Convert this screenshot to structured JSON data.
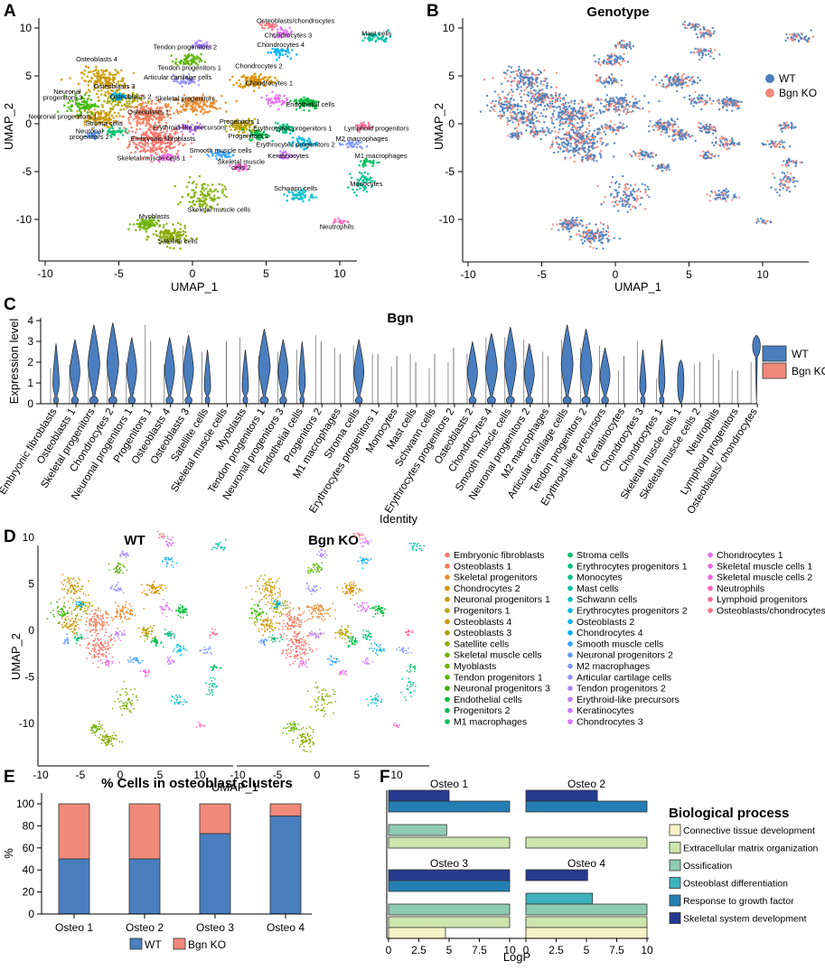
{
  "panel_letters": {
    "a": "A",
    "b": "B",
    "c": "C",
    "d": "D",
    "e": "E",
    "f": "F"
  },
  "colors": {
    "wt": "#4a7ebf",
    "ko": "#f0897a",
    "bar_outline": "#333333"
  },
  "umap": {
    "xlabel": "UMAP_1",
    "ylabel": "UMAP_2",
    "xticks": [
      "-10",
      "-5",
      "0",
      "5",
      "10"
    ],
    "yticks": [
      "10",
      "5",
      "0",
      "-5",
      "-10"
    ],
    "clusters": [
      {
        "label": "Embryonic fibroblasts",
        "color": "#f8766d",
        "x": -2.5,
        "y": -1.8,
        "sx": 1.6,
        "sy": 1.5,
        "n": 260
      },
      {
        "label": "Osteoblasts 1",
        "color": "#f27c5a",
        "x": -3,
        "y": 0.8,
        "sx": 1.5,
        "sy": 1.2,
        "n": 200
      },
      {
        "label": "Skeletal progenitors",
        "color": "#e78a2f",
        "x": 0.2,
        "y": 2,
        "sx": 1.6,
        "sy": 0.8,
        "n": 150
      },
      {
        "label": "Chondrocytes 2",
        "color": "#d89000",
        "x": 4.3,
        "y": 4.5,
        "sx": 1.1,
        "sy": 0.7,
        "n": 120
      },
      {
        "label": "Neuronal progenitors 1",
        "color": "#c99700",
        "x": -6.5,
        "y": 0.6,
        "sx": 1.2,
        "sy": 0.9,
        "n": 120
      },
      {
        "label": "Progenitors 1",
        "color": "#b79f00",
        "x": 3.4,
        "y": -0.3,
        "sx": 0.9,
        "sy": 0.7,
        "n": 90
      },
      {
        "label": "Osteoblasts 4",
        "color": "#c99700",
        "x": -6,
        "y": 4.5,
        "sx": 1.4,
        "sy": 1.2,
        "n": 160
      },
      {
        "label": "Osteoblasts 3",
        "color": "#a3a500",
        "x": -4.8,
        "y": 2.5,
        "sx": 1.2,
        "sy": 0.8,
        "n": 110
      },
      {
        "label": "Satellite cells",
        "color": "#8aa900",
        "x": -1.5,
        "y": -11.8,
        "sx": 1.1,
        "sy": 0.9,
        "n": 130
      },
      {
        "label": "Skeletal muscle cells",
        "color": "#7cae00",
        "x": 0.8,
        "y": -7.5,
        "sx": 1.2,
        "sy": 1.4,
        "n": 110
      },
      {
        "label": "Myoblasts",
        "color": "#6bb100",
        "x": -3.2,
        "y": -10.5,
        "sx": 0.8,
        "sy": 0.6,
        "n": 80
      },
      {
        "label": "Tendon progenitors 1",
        "color": "#5bb300",
        "x": -0.3,
        "y": 6.6,
        "sx": 0.8,
        "sy": 0.6,
        "n": 70
      },
      {
        "label": "Neuronal progenitors 3",
        "color": "#39b600",
        "x": -7.5,
        "y": 2,
        "sx": 0.9,
        "sy": 0.9,
        "n": 80
      },
      {
        "label": "Endothelial cells",
        "color": "#00ba38",
        "x": 7.8,
        "y": 2.2,
        "sx": 0.8,
        "sy": 0.6,
        "n": 80
      },
      {
        "label": "Progenitors 2",
        "color": "#00bb4e",
        "x": 4.5,
        "y": -1.2,
        "sx": 0.6,
        "sy": 0.5,
        "n": 60
      },
      {
        "label": "M1 macrophages",
        "color": "#00bd5f",
        "x": 12,
        "y": -4,
        "sx": 0.7,
        "sy": 0.4,
        "n": 30
      },
      {
        "label": "Stroma cells",
        "color": "#00be6c",
        "x": -5.3,
        "y": -0.8,
        "sx": 0.6,
        "sy": 0.4,
        "n": 40
      },
      {
        "label": "Erythrocytes progenitors 1",
        "color": "#00bf7d",
        "x": 6.2,
        "y": -0.5,
        "sx": 0.7,
        "sy": 0.5,
        "n": 50
      },
      {
        "label": "Monocytes",
        "color": "#00c08b",
        "x": 11.5,
        "y": -6,
        "sx": 0.6,
        "sy": 0.9,
        "n": 50
      },
      {
        "label": "Mast cells",
        "color": "#00c1a3",
        "x": 12.5,
        "y": 9,
        "sx": 0.9,
        "sy": 0.5,
        "n": 45
      },
      {
        "label": "Schwann cells",
        "color": "#00bfc4",
        "x": 7.3,
        "y": -7.5,
        "sx": 0.8,
        "sy": 0.6,
        "n": 50
      },
      {
        "label": "Erythrocytes progenitors 2",
        "color": "#00b9e3",
        "x": 7.5,
        "y": -2,
        "sx": 0.8,
        "sy": 0.5,
        "n": 50
      },
      {
        "label": "Osteoblasts 2",
        "color": "#00b4f0",
        "x": -5,
        "y": 2.8,
        "sx": 0.5,
        "sy": 0.4,
        "n": 35
      },
      {
        "label": "Chondrocytes 4",
        "color": "#00adfa",
        "x": 5.8,
        "y": 7.5,
        "sx": 0.7,
        "sy": 0.5,
        "n": 40
      },
      {
        "label": "Smooth muscle cells",
        "color": "#35a2ff",
        "x": 2,
        "y": -3.2,
        "sx": 0.8,
        "sy": 0.4,
        "n": 45
      },
      {
        "label": "Neuronal progenitors 2",
        "color": "#619cff",
        "x": -6.8,
        "y": -1.2,
        "sx": 0.5,
        "sy": 0.4,
        "n": 35
      },
      {
        "label": "M2 macrophages",
        "color": "#7c96ff",
        "x": 10.8,
        "y": -2.2,
        "sx": 0.8,
        "sy": 0.4,
        "n": 35
      },
      {
        "label": "Articular cartilage cells",
        "color": "#9590ff",
        "x": -0.5,
        "y": 4.5,
        "sx": 0.7,
        "sy": 0.5,
        "n": 45
      },
      {
        "label": "Tendon progenitors 2",
        "color": "#ab82ff",
        "x": 0.5,
        "y": 8.2,
        "sx": 0.6,
        "sy": 0.4,
        "n": 35
      },
      {
        "label": "Erythroid-like precursors",
        "color": "#bc79fd",
        "x": 0,
        "y": -0.4,
        "sx": 0.9,
        "sy": 0.4,
        "n": 45
      },
      {
        "label": "Keratinocytes",
        "color": "#cf78ff",
        "x": 6.3,
        "y": -3.3,
        "sx": 0.5,
        "sy": 0.4,
        "n": 30
      },
      {
        "label": "Chondrocytes 3",
        "color": "#dd71fa",
        "x": 6.2,
        "y": 9.5,
        "sx": 0.7,
        "sy": 0.5,
        "n": 35
      },
      {
        "label": "Chondrocytes 1",
        "color": "#e76bf3",
        "x": 5.6,
        "y": 2.5,
        "sx": 0.7,
        "sy": 0.6,
        "n": 45
      },
      {
        "label": "Skeletal muscle cells 1",
        "color": "#f066ea",
        "x": -1.8,
        "y": -3.5,
        "sx": 0.6,
        "sy": 0.4,
        "n": 35
      },
      {
        "label": "Skeletal muscle cells 2",
        "color": "#fa62db",
        "x": 3.2,
        "y": -4.5,
        "sx": 0.5,
        "sy": 0.4,
        "n": 30
      },
      {
        "label": "Neutrophils",
        "color": "#ff62bc",
        "x": 10,
        "y": -10.2,
        "sx": 0.4,
        "sy": 0.3,
        "n": 20
      },
      {
        "label": "Lymphoid progenitors",
        "color": "#ff6a98",
        "x": 11.7,
        "y": -0.3,
        "sx": 0.6,
        "sy": 0.4,
        "n": 30
      },
      {
        "label": "Osteoblasts/chondrocytes",
        "color": "#fc717f",
        "x": 5.2,
        "y": 10.3,
        "sx": 0.6,
        "sy": 0.3,
        "n": 25
      }
    ],
    "panel_a_labels": [
      {
        "t": "Osteoblasts/chondrocytes",
        "x": 7.0,
        "y": 10.5
      },
      {
        "t": "Chondrocytes 3",
        "x": 6.5,
        "y": 9.0
      },
      {
        "t": "Chondrocytes 4",
        "x": 6.0,
        "y": 8.0
      },
      {
        "t": "Tendon progenitors 2",
        "x": -0.5,
        "y": 7.8
      },
      {
        "t": "Mast cells",
        "x": 12.5,
        "y": 9.2
      },
      {
        "t": "Osteoblasts 4",
        "x": -6.5,
        "y": 6.5
      },
      {
        "t": "Tendon progenitors 1",
        "x": -0.2,
        "y": 5.6
      },
      {
        "t": "Chondrocytes 2",
        "x": 4.5,
        "y": 5.8
      },
      {
        "t": "Articular cartilage cells",
        "x": -1.0,
        "y": 4.6
      },
      {
        "t": "Osteoblasts 3",
        "x": -5.3,
        "y": 3.7
      },
      {
        "t": "Chondrocytes 1",
        "x": 5.2,
        "y": 4.0
      },
      {
        "t": "Neuronal",
        "x": -8.5,
        "y": 3.1
      },
      {
        "t": "Osteoblasts 2",
        "x": -4.2,
        "y": 2.6
      },
      {
        "t": "progenitors 3",
        "x": -8.8,
        "y": 2.5
      },
      {
        "t": "Skeletal progenitors",
        "x": -0.5,
        "y": 2.4
      },
      {
        "t": "Endothelial cells",
        "x": 8.0,
        "y": 1.8
      },
      {
        "t": "Osteoblasts 1",
        "x": -3.0,
        "y": 1.0
      },
      {
        "t": "Neuronal progenitors 1",
        "x": -8.8,
        "y": 0.5
      },
      {
        "t": "Progenitors 1",
        "x": 3.2,
        "y": 0.0
      },
      {
        "t": "Stroma cells",
        "x": -6.0,
        "y": -0.2
      },
      {
        "t": "Erythrocytes progenitors 1",
        "x": 6.8,
        "y": -0.7
      },
      {
        "t": "Lymphoid progenitors",
        "x": 12.5,
        "y": -0.7
      },
      {
        "t": "Erythroid-like precursors",
        "x": -0.2,
        "y": -0.6
      },
      {
        "t": "Neuronal",
        "x": -7.0,
        "y": -1.0
      },
      {
        "t": "Progenitors 2",
        "x": 3.8,
        "y": -1.5
      },
      {
        "t": "M2 macrophages",
        "x": 11.5,
        "y": -1.8
      },
      {
        "t": "progenitors 2",
        "x": -7.0,
        "y": -1.6
      },
      {
        "t": "Embryonic fibroblasts",
        "x": -2.0,
        "y": -1.8
      },
      {
        "t": "Erythrocytes progenitors 2",
        "x": 7.0,
        "y": -2.4
      },
      {
        "t": "Smooth muscle cells",
        "x": 1.9,
        "y": -3.0
      },
      {
        "t": "Keratinocytes",
        "x": 6.5,
        "y": -3.6
      },
      {
        "t": "M1 macrophages",
        "x": 12.8,
        "y": -3.6
      },
      {
        "t": "Skeletal muscle cells 1",
        "x": -2.8,
        "y": -3.8
      },
      {
        "t": "Skeletal muscle",
        "x": 3.3,
        "y": -4.2
      },
      {
        "t": "cells 2",
        "x": 3.3,
        "y": -4.8
      },
      {
        "t": "Monocytes",
        "x": 11.8,
        "y": -6.5
      },
      {
        "t": "Schwann cells",
        "x": 7.0,
        "y": -7.0
      },
      {
        "t": "Skeletal muscle cells",
        "x": 1.8,
        "y": -9.2
      },
      {
        "t": "Myoblasts",
        "x": -2.6,
        "y": -9.9
      },
      {
        "t": "Neutrophils",
        "x": 9.8,
        "y": -11.0
      },
      {
        "t": "Satellite cells",
        "x": -1.0,
        "y": -12.5
      }
    ]
  },
  "panel_b": {
    "title": "Genotype",
    "legend": [
      {
        "label": "WT"
      },
      {
        "label": "Bgn KO"
      }
    ]
  },
  "panel_c": {
    "title": "Bgn",
    "ylabel": "Expression level",
    "xlabel": "Identity",
    "yticks": [
      "4",
      "3",
      "2",
      "1",
      "0"
    ],
    "legend": [
      {
        "label": "WT"
      },
      {
        "label": "Bgn KO"
      }
    ],
    "categories": [
      {
        "name": "Embryonic fibroblasts",
        "wt": 2.9,
        "ko": 1.7,
        "wtshape": "low"
      },
      {
        "name": "Osteoblasts 1",
        "wt": 3.1,
        "ko": 1.9,
        "wtshape": "mid"
      },
      {
        "name": "Skeletal progenitors",
        "wt": 3.8,
        "ko": 2.3,
        "wtshape": "high"
      },
      {
        "name": "Chondrocytes 2",
        "wt": 3.9,
        "ko": 2.2,
        "wtshape": "high"
      },
      {
        "name": "Neuronal progenitors 1",
        "wt": 3.2,
        "ko": 2.0,
        "wtshape": "mid"
      },
      {
        "name": "Progenitors 1",
        "wt": 3.0,
        "ko": 3.8,
        "wtshape": "line"
      },
      {
        "name": "Osteoblasts 4",
        "wt": 3.2,
        "ko": 1.9,
        "wtshape": "mid"
      },
      {
        "name": "Osteoblasts 3",
        "wt": 3.3,
        "ko": 2.8,
        "wtshape": "mid"
      },
      {
        "name": "Satellite cells",
        "wt": 2.6,
        "ko": 2.5,
        "wtshape": "low"
      },
      {
        "name": "Skeletal muscle cells",
        "wt": 3.0,
        "ko": 0.0,
        "wtshape": "line"
      },
      {
        "name": "Myoblasts",
        "wt": 2.6,
        "ko": 3.2,
        "wtshape": "low"
      },
      {
        "name": "Tendon progenitors 1",
        "wt": 3.6,
        "ko": 2.3,
        "wtshape": "high"
      },
      {
        "name": "Neuronal progenitors 3",
        "wt": 3.1,
        "ko": 2.5,
        "wtshape": "mid"
      },
      {
        "name": "Endothelial cells",
        "wt": 3.0,
        "ko": 2.6,
        "wtshape": "low"
      },
      {
        "name": "Progenitors 2",
        "wt": 3.0,
        "ko": 3.3,
        "wtshape": "line"
      },
      {
        "name": "M1 macrophages",
        "wt": 2.4,
        "ko": 2.7,
        "wtshape": "line"
      },
      {
        "name": "Stroma cells",
        "wt": 3.1,
        "ko": 2.8,
        "wtshape": "mid"
      },
      {
        "name": "Erythrocytes progenitors 1",
        "wt": 2.4,
        "ko": 2.4,
        "wtshape": "line"
      },
      {
        "name": "Monocytes",
        "wt": 2.3,
        "ko": 1.8,
        "wtshape": "line"
      },
      {
        "name": "Mast cells",
        "wt": 2.0,
        "ko": 2.4,
        "wtshape": "line"
      },
      {
        "name": "Schwann cells",
        "wt": 2.4,
        "ko": 1.7,
        "wtshape": "line"
      },
      {
        "name": "Erythrocytes progenitors 2",
        "wt": 2.7,
        "ko": 2.0,
        "wtshape": "line"
      },
      {
        "name": "Osteoblasts 2",
        "wt": 3.0,
        "ko": 2.4,
        "wtshape": "mid"
      },
      {
        "name": "Chondrocytes 4",
        "wt": 3.4,
        "ko": 3.2,
        "wtshape": "high"
      },
      {
        "name": "Smooth muscle cells",
        "wt": 3.7,
        "ko": 3.2,
        "wtshape": "high"
      },
      {
        "name": "Neuronal progenitors 2",
        "wt": 2.9,
        "ko": 3.1,
        "wtshape": "mid"
      },
      {
        "name": "M2 macrophages",
        "wt": 2.3,
        "ko": 2.5,
        "wtshape": "line"
      },
      {
        "name": "Articular cartilage cells",
        "wt": 3.8,
        "ko": 3.1,
        "wtshape": "high"
      },
      {
        "name": "Tendon progenitors 2",
        "wt": 3.6,
        "ko": 2.7,
        "wtshape": "high"
      },
      {
        "name": "Erythroid-like precursors",
        "wt": 2.7,
        "ko": 2.8,
        "wtshape": "mid"
      },
      {
        "name": "Keratinocytes",
        "wt": 2.3,
        "ko": 1.6,
        "wtshape": "line"
      },
      {
        "name": "Chondrocytes 3",
        "wt": 2.6,
        "ko": 3.0,
        "wtshape": "low"
      },
      {
        "name": "Chondrocytes 1",
        "wt": 3.1,
        "ko": 1.2,
        "wtshape": "low"
      },
      {
        "name": "Skeletal muscle cells 1",
        "wt": 2.1,
        "ko": 0.0,
        "wtshape": "block"
      },
      {
        "name": "Skeletal muscle cells 2",
        "wt": 2.0,
        "ko": 1.9,
        "wtshape": "line"
      },
      {
        "name": "Neutrophils",
        "wt": 2.1,
        "ko": 2.4,
        "wtshape": "line"
      },
      {
        "name": "Lymphoid progenitors",
        "wt": 1.6,
        "ko": 1.6,
        "wtshape": "line"
      },
      {
        "name": "Osteoblasts/ chondrocytes",
        "wt": 3.3,
        "ko": 2.0,
        "wtshape": "top"
      }
    ]
  },
  "panel_d": {
    "titles": {
      "wt": "WT",
      "ko": "Bgn KO"
    }
  },
  "panel_e": {
    "title": "% Cells in osteoblast clusters",
    "ylabel": "%",
    "yticks": [
      "100",
      "80",
      "60",
      "40",
      "20",
      "0"
    ],
    "legend": [
      {
        "label": "WT"
      },
      {
        "label": "Bgn KO"
      }
    ]
  },
  "panel_f": {
    "xlabel": "LogP",
    "xticks": [
      "0",
      "2.5",
      "5",
      "7.5",
      "10"
    ],
    "legend_title": "Biological process",
    "processes": [
      {
        "label": "Connective tissue development",
        "color": "#f7f3c6"
      },
      {
        "label": "Extracellular matrix organization",
        "color": "#cde5ad"
      },
      {
        "label": "Ossification",
        "color": "#8fcbb4"
      },
      {
        "label": "Osteoblast differentiation",
        "color": "#3db2bd"
      },
      {
        "label": "Response to growth factor",
        "color": "#257eb3"
      },
      {
        "label": "Skeletal system development",
        "color": "#263a8f"
      }
    ],
    "order_top_to_bottom": [
      "Skeletal system development",
      "Response to growth factor",
      "Osteoblast differentiation",
      "Ossification",
      "Extracellular matrix organization",
      "Connective tissue development"
    ]
  },
  "chart_data": [
    {
      "type": "bar",
      "title": "% Cells in osteoblast clusters",
      "xlabel": "",
      "ylabel": "%",
      "ylim": [
        0,
        100
      ],
      "categories": [
        "Osteo 1",
        "Osteo 2",
        "Osteo 3",
        "Osteo 4"
      ],
      "series": [
        {
          "name": "WT",
          "values": [
            50,
            50,
            73,
            89
          ]
        },
        {
          "name": "Bgn KO",
          "values": [
            50,
            50,
            27,
            11
          ]
        }
      ]
    },
    {
      "type": "bar",
      "title": "Osteo 1",
      "xlabel": "LogP",
      "xlim": [
        0,
        10
      ],
      "categories": [
        "Skeletal system development",
        "Response to growth factor",
        "Osteoblast differentiation",
        "Ossification",
        "Extracellular matrix organization",
        "Connective tissue development"
      ],
      "values": [
        5.0,
        10,
        null,
        4.8,
        10,
        null
      ]
    },
    {
      "type": "bar",
      "title": "Osteo 2",
      "xlabel": "LogP",
      "xlim": [
        0,
        10
      ],
      "categories": [
        "Skeletal system development",
        "Response to growth factor",
        "Osteoblast differentiation",
        "Ossification",
        "Extracellular matrix organization",
        "Connective tissue development"
      ],
      "values": [
        5.9,
        10,
        null,
        null,
        10,
        null
      ]
    },
    {
      "type": "bar",
      "title": "Osteo 3",
      "xlabel": "LogP",
      "xlim": [
        0,
        10
      ],
      "categories": [
        "Skeletal system development",
        "Response to growth factor",
        "Osteoblast differentiation",
        "Ossification",
        "Extracellular matrix organization",
        "Connective tissue development"
      ],
      "values": [
        10,
        10,
        null,
        10,
        10,
        4.7
      ]
    },
    {
      "type": "bar",
      "title": "Osteo 4",
      "xlabel": "LogP",
      "xlim": [
        0,
        10
      ],
      "categories": [
        "Skeletal system development",
        "Response to growth factor",
        "Osteoblast differentiation",
        "Ossification",
        "Extracellular matrix organization",
        "Connective tissue development"
      ],
      "values": [
        5.1,
        null,
        5.5,
        10,
        10,
        10
      ]
    }
  ]
}
